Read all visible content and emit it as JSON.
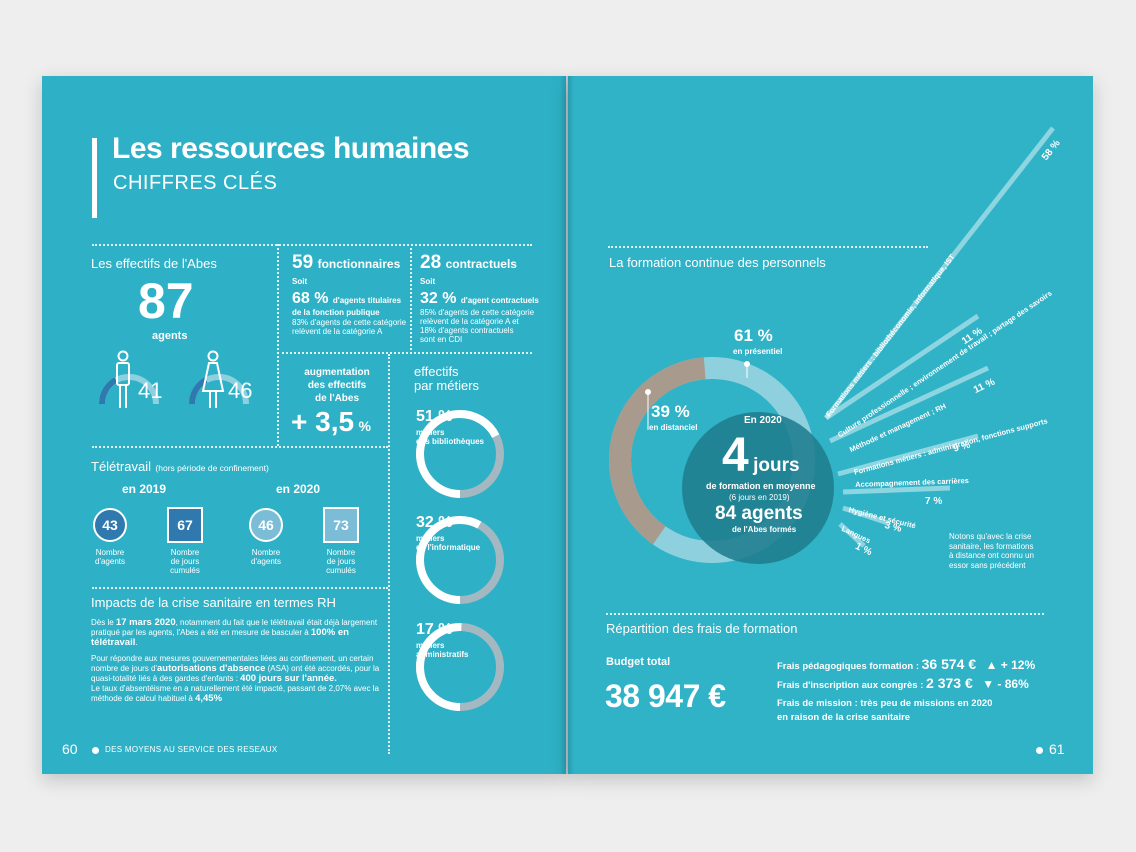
{
  "colors": {
    "background": "#2eb1c6",
    "dark_blue": "#2f79ae",
    "light_blue": "#7bbcd6",
    "taupe": "#a89a8c",
    "ring_light": "#8fd0de",
    "ring_grey": "#a4b8c1",
    "inner_circle": "#1f7d8e"
  },
  "left": {
    "title": "Les ressources humaines",
    "subtitle": "CHIFFRES CLÉS",
    "effectifs": {
      "heading": "Les effectifs de l'Abes",
      "count": "87",
      "count_label": "agents",
      "men": "41",
      "women": "46",
      "men_share": 0.47,
      "women_share": 0.53
    },
    "fonctionnaires": {
      "count": "59",
      "label": "fonctionnaires",
      "soit": "Soit",
      "pct": "68 %",
      "pct_label_1": "d'agents titulaires",
      "pct_label_2": "de la fonction publique",
      "note_1": "83% d'agents de cette catégorie",
      "note_2": "relèvent de la catégorie A"
    },
    "contractuels": {
      "count": "28",
      "label": "contractuels",
      "soit": "Soit",
      "pct": "32 %",
      "pct_label": "d'agent contractuels",
      "note_1": "85% d'agents de cette catégorie",
      "note_2": "relèvent de la catégorie A et",
      "note_3": "18% d'agents contractuels",
      "note_4": "sont en CDI"
    },
    "augmentation": {
      "line1": "augmentation",
      "line2": "des effectifs",
      "line3": "de l'Abes",
      "value": "+ 3,5",
      "unit": "%"
    },
    "metiers": {
      "heading1": "effectifs",
      "heading2": "par métiers",
      "items": [
        {
          "pct": "51 %",
          "l1": "métiers",
          "l2": "des bibliothèques",
          "value": 51
        },
        {
          "pct": "32 %",
          "l1": "métiers",
          "l2": "de l'informatique",
          "value": 32
        },
        {
          "pct": "17 %",
          "l1": "métiers",
          "l2": "administratifs",
          "value": 17
        }
      ]
    },
    "teletravail": {
      "heading": "Télétravail",
      "heading_note": "(hors période de confinement)",
      "year1": "en 2019",
      "year2": "en 2020",
      "agents_2019": "43",
      "jours_2019": "67",
      "agents_2020": "46",
      "jours_2020": "73",
      "lab_agents_1": "Nombre",
      "lab_agents_2": "d'agents",
      "lab_jours_1": "Nombre",
      "lab_jours_2": "de jours",
      "lab_jours_3": "cumulés"
    },
    "impacts": {
      "heading": "Impacts de la crise sanitaire en termes RH",
      "p1_a": "Dès le ",
      "p1_date": "17 mars 2020",
      "p1_b": ", notamment du fait que le télétravail était déjà largement pratiqué par les agents, l'Abes a été en mesure de basculer à ",
      "p1_pct": "100% en télétravail",
      "p1_c": ".",
      "p2_a": "Pour répondre aux mesures gouvernementales liées au confinement, un certain nombre de jours d'",
      "p2_asa": "autorisations d'absence",
      "p2_b": " (ASA) ont été accordés, pour la quasi-totalité liés à des gardes d'enfants : ",
      "p2_days": "400 jours sur l'année.",
      "p3_a": "Le taux d'absentéisme en a naturellement été impacté, passant de 2,07% avec la méthode de calcul habituel à ",
      "p3_val": "4,45%"
    },
    "footer_num": "60",
    "footer_text": "DES MOYENS AU SERVICE DES RESEAUX"
  },
  "right": {
    "formation_heading": "La formation continue des personnels",
    "presentiel_pct": "61 %",
    "presentiel_label": "en présentiel",
    "distanciel_pct": "39 %",
    "distanciel_label": "en distanciel",
    "en2020": "En 2020",
    "jours_num": "4",
    "jours_word": "jours",
    "jours_sub": "de formation en moyenne",
    "jours_prev": "(6 jours en 2019)",
    "agents": "84 agents",
    "agents_sub": "de l'Abes formés",
    "note_1": "Notons qu'avec la crise",
    "note_2": "sanitaire, les formations",
    "note_3": "à distance ont connu un",
    "note_4": "essor sans précédent",
    "rays": [
      {
        "label": "Formations métiers : bibliothéconomie, informatique, IST",
        "pct": "58 %",
        "value": 58
      },
      {
        "label": "Culture professionnelle ; environnement de travail ; partage des savoirs",
        "pct": "11 %",
        "value": 11
      },
      {
        "label": "Méthode et management ; RH",
        "pct": "11 %",
        "value": 11
      },
      {
        "label": "Formations métiers : administration, fonctions supports",
        "pct": "9 %",
        "value": 9
      },
      {
        "label": "Accompagnement des carrières",
        "pct": "7 %",
        "value": 7
      },
      {
        "label": "Hygiène et sécurité",
        "pct": "3 %",
        "value": 3
      },
      {
        "label": "Langues",
        "pct": "1 %",
        "value": 1
      }
    ],
    "frais_heading": "Répartition des frais de formation",
    "budget_label": "Budget total",
    "budget_value": "38 947 €",
    "peda_label": "Frais pédagogiques formation : ",
    "peda_value": "36 574 €",
    "peda_change": "▲ + 12%",
    "inscr_label": "Frais d'inscription aux congrès : ",
    "inscr_value": "2 373 €",
    "inscr_change": "▼ - 86%",
    "mission_1": "Frais de mission : très peu de missions en 2020",
    "mission_2": "en raison de la crise sanitaire",
    "footer_num": "61"
  }
}
